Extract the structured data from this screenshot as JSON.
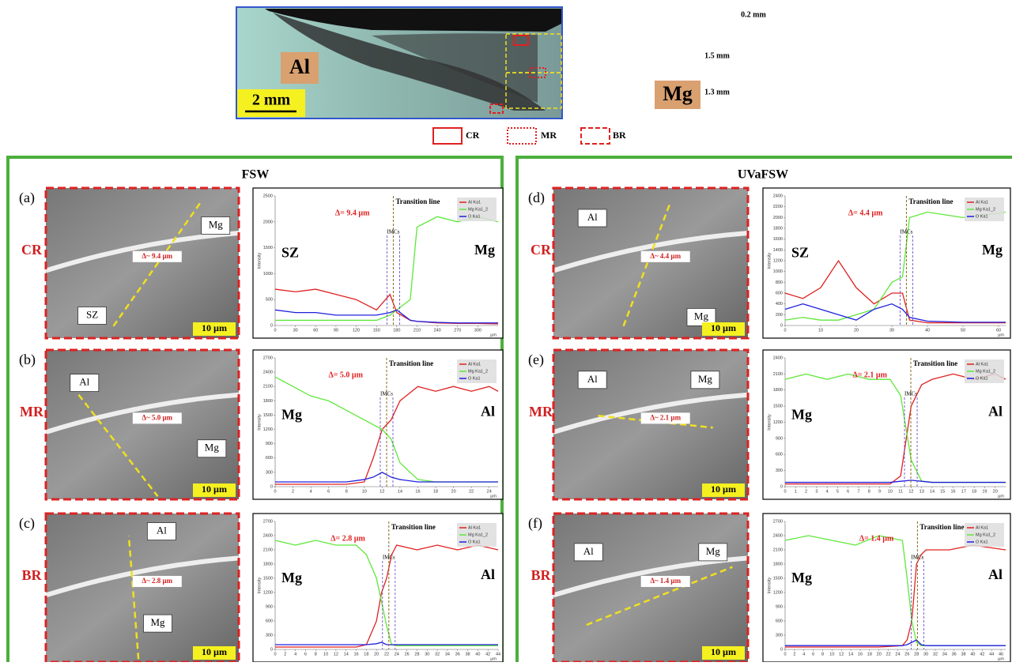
{
  "overview": {
    "labels": [
      "Al",
      "Mg"
    ],
    "scale_bar": "2 mm",
    "dims": [
      "0.2 mm",
      "1.5 mm",
      "1.3 mm"
    ],
    "legend": [
      "CR",
      "MR",
      "BR"
    ]
  },
  "panels": [
    {
      "title": "FSW"
    },
    {
      "title": "UVaFSW"
    }
  ],
  "micrographs": [
    {
      "letter": "(a)",
      "region": "CR",
      "labels": [
        "Mg",
        "SZ"
      ],
      "delta": "Δ~ 9.4 µm",
      "scale": "10 µm"
    },
    {
      "letter": "(b)",
      "region": "MR",
      "labels": [
        "Al",
        "Mg"
      ],
      "delta": "Δ~ 5.0 µm",
      "scale": "10 µm"
    },
    {
      "letter": "(c)",
      "region": "BR",
      "labels": [
        "Al",
        "Mg"
      ],
      "delta": "Δ~ 2.8 µm",
      "scale": "10 µm"
    },
    {
      "letter": "(d)",
      "region": "CR",
      "labels": [
        "Al",
        "Mg"
      ],
      "delta": "Δ~ 4.4 µm",
      "scale": "10 µm"
    },
    {
      "letter": "(e)",
      "region": "MR",
      "labels": [
        "Al",
        "Mg"
      ],
      "delta": "Δ~ 2.1 µm",
      "scale": "10 µm"
    },
    {
      "letter": "(f)",
      "region": "BR",
      "labels": [
        "Al",
        "Mg"
      ],
      "delta": "Δ~ 1.4 µm",
      "scale": "10 µm"
    }
  ],
  "chart_data": [
    {
      "type": "line",
      "xlabel": "µm",
      "ylabel": "Intensity",
      "delta": "Δ= 9.4 µm",
      "transition": "Transition line",
      "imcs": "IMCs",
      "left": "SZ",
      "right": "Mg",
      "x": [
        0,
        30,
        60,
        90,
        120,
        150,
        170,
        180,
        200,
        210,
        240,
        270,
        300,
        330
      ],
      "xlim": [
        0,
        330
      ],
      "xticks": [
        0,
        30,
        60,
        90,
        120,
        150,
        180,
        210,
        240,
        270,
        300
      ],
      "ylim": [
        0,
        2500
      ],
      "yticks": [
        0,
        500,
        1000,
        1500,
        2000,
        2500
      ],
      "series": [
        {
          "name": "Al Ka1",
          "color": "#e02020",
          "values": [
            700,
            650,
            700,
            600,
            500,
            300,
            600,
            250,
            100,
            80,
            50,
            40,
            40,
            30
          ]
        },
        {
          "name": "Mg Ka1_2",
          "color": "#5ee83a",
          "values": [
            100,
            100,
            100,
            100,
            100,
            100,
            200,
            300,
            500,
            1900,
            2100,
            2000,
            2100,
            2000
          ]
        },
        {
          "name": "O Ka1",
          "color": "#2020e0",
          "values": [
            300,
            250,
            250,
            200,
            200,
            200,
            250,
            300,
            100,
            80,
            60,
            50,
            50,
            50
          ]
        }
      ]
    },
    {
      "type": "line",
      "xlabel": "µm",
      "ylabel": "Intensity",
      "delta": "Δ= 5.0 µm",
      "transition": "Transition line",
      "imcs": "IMCs",
      "left": "Mg",
      "right": "Al",
      "x": [
        0,
        2,
        4,
        6,
        8,
        10,
        11,
        12,
        13,
        14,
        16,
        18,
        20,
        22,
        24,
        25
      ],
      "xlim": [
        0,
        25
      ],
      "xticks": [
        0,
        2,
        4,
        6,
        8,
        10,
        12,
        14,
        16,
        18,
        20,
        22,
        24
      ],
      "ylim": [
        0,
        2700
      ],
      "yticks": [
        0,
        300,
        600,
        900,
        1200,
        1500,
        1800,
        2100,
        2400,
        2700
      ],
      "series": [
        {
          "name": "Al Ka1",
          "color": "#e02020",
          "values": [
            50,
            50,
            50,
            50,
            50,
            100,
            600,
            1200,
            1400,
            1800,
            2100,
            2000,
            2100,
            2000,
            2100,
            2000
          ]
        },
        {
          "name": "Mg Ka1_2",
          "color": "#5ee83a",
          "values": [
            2300,
            2100,
            1900,
            1800,
            1600,
            1400,
            1300,
            1200,
            1000,
            500,
            150,
            100,
            100,
            100,
            100,
            100
          ]
        },
        {
          "name": "O Ka1",
          "color": "#2020e0",
          "values": [
            100,
            100,
            100,
            100,
            100,
            150,
            200,
            300,
            200,
            150,
            100,
            100,
            100,
            100,
            100,
            100
          ]
        }
      ]
    },
    {
      "type": "line",
      "xlabel": "µm",
      "ylabel": "Intensity",
      "delta": "Δ= 2.8 µm",
      "transition": "Transition line",
      "imcs": "IMCs",
      "left": "Mg",
      "right": "Al",
      "x": [
        0,
        4,
        8,
        12,
        16,
        18,
        20,
        21,
        22,
        23,
        24,
        28,
        32,
        36,
        40,
        44
      ],
      "xlim": [
        0,
        44
      ],
      "xticks": [
        0,
        2,
        4,
        6,
        8,
        10,
        12,
        14,
        16,
        18,
        20,
        22,
        24,
        26,
        28,
        30,
        32,
        34,
        36,
        38,
        40,
        42,
        44
      ],
      "ylim": [
        0,
        2700
      ],
      "yticks": [
        0,
        300,
        600,
        900,
        1200,
        1500,
        1800,
        2100,
        2400,
        2700
      ],
      "series": [
        {
          "name": "Al Ka1",
          "color": "#e02020",
          "values": [
            50,
            50,
            50,
            50,
            50,
            100,
            600,
            1200,
            1500,
            2000,
            2200,
            2100,
            2200,
            2100,
            2200,
            2100
          ]
        },
        {
          "name": "Mg Ka1_2",
          "color": "#5ee83a",
          "values": [
            2300,
            2200,
            2300,
            2200,
            2200,
            2000,
            1500,
            1000,
            500,
            100,
            80,
            80,
            80,
            80,
            80,
            80
          ]
        },
        {
          "name": "O Ka1",
          "color": "#2020e0",
          "values": [
            100,
            100,
            100,
            100,
            100,
            100,
            120,
            150,
            100,
            100,
            100,
            100,
            100,
            100,
            100,
            100
          ]
        }
      ]
    },
    {
      "type": "line",
      "xlabel": "µm",
      "ylabel": "Intensity",
      "delta": "Δ= 4.4 µm",
      "transition": "Transition line",
      "imcs": "IMCs",
      "left": "SZ",
      "right": "Mg",
      "x": [
        0,
        5,
        10,
        15,
        20,
        25,
        30,
        33,
        35,
        40,
        50,
        62
      ],
      "xlim": [
        0,
        62
      ],
      "xticks": [
        0,
        10,
        20,
        30,
        40,
        50,
        60
      ],
      "ylim": [
        0,
        2400
      ],
      "yticks": [
        0,
        200,
        400,
        600,
        800,
        1000,
        1200,
        1400,
        1600,
        1800,
        2000,
        2200,
        2400
      ],
      "series": [
        {
          "name": "Al Ka1",
          "color": "#e02020",
          "values": [
            600,
            500,
            700,
            1200,
            700,
            400,
            600,
            600,
            100,
            50,
            50,
            50
          ]
        },
        {
          "name": "Mg Ka1_2",
          "color": "#5ee83a",
          "values": [
            100,
            150,
            100,
            100,
            200,
            300,
            800,
            900,
            2000,
            2100,
            2000,
            2100
          ]
        },
        {
          "name": "O Ka1",
          "color": "#2020e0",
          "values": [
            300,
            400,
            300,
            200,
            100,
            300,
            400,
            300,
            150,
            80,
            60,
            60
          ]
        }
      ]
    },
    {
      "type": "line",
      "xlabel": "µm",
      "ylabel": "Intensity",
      "delta": "Δ= 2.1 µm",
      "transition": "Transition line",
      "imcs": "IMCs",
      "left": "Mg",
      "right": "Al",
      "x": [
        0,
        2,
        4,
        6,
        8,
        10,
        11,
        12,
        13,
        14,
        16,
        18,
        20,
        21
      ],
      "xlim": [
        0,
        21
      ],
      "xticks": [
        0,
        1,
        2,
        3,
        4,
        5,
        6,
        7,
        8,
        9,
        10,
        11,
        12,
        13,
        14,
        15,
        16,
        17,
        18,
        19,
        20
      ],
      "ylim": [
        0,
        2400
      ],
      "yticks": [
        0,
        300,
        600,
        900,
        1200,
        1500,
        1800,
        2100,
        2400
      ],
      "series": [
        {
          "name": "Al Ka1",
          "color": "#e02020",
          "values": [
            50,
            50,
            50,
            50,
            50,
            50,
            200,
            1500,
            1900,
            2000,
            2100,
            2000,
            2100,
            2000
          ]
        },
        {
          "name": "Mg Ka1_2",
          "color": "#5ee83a",
          "values": [
            2000,
            2100,
            2000,
            2100,
            2000,
            2000,
            1700,
            500,
            100,
            80,
            80,
            80,
            80,
            80
          ]
        },
        {
          "name": "O Ka1",
          "color": "#2020e0",
          "values": [
            80,
            80,
            80,
            80,
            80,
            80,
            100,
            120,
            100,
            80,
            80,
            80,
            80,
            80
          ]
        }
      ]
    },
    {
      "type": "line",
      "xlabel": "µm",
      "ylabel": "Intensity",
      "delta": "Δ= 1.4 µm",
      "transition": "Transition line",
      "imcs": "IMCs",
      "left": "Mg",
      "right": "Al",
      "x": [
        0,
        5,
        10,
        15,
        20,
        25,
        26,
        27,
        28,
        29,
        30,
        35,
        40,
        47
      ],
      "xlim": [
        0,
        47
      ],
      "xticks": [
        0,
        2,
        4,
        6,
        8,
        10,
        12,
        14,
        16,
        18,
        20,
        22,
        24,
        26,
        28,
        30,
        32,
        34,
        36,
        38,
        40,
        42,
        44,
        46
      ],
      "ylim": [
        0,
        2700
      ],
      "yticks": [
        0,
        300,
        600,
        900,
        1200,
        1500,
        1800,
        2100,
        2400,
        2700
      ],
      "series": [
        {
          "name": "Al Ka1",
          "color": "#e02020",
          "values": [
            50,
            50,
            50,
            50,
            50,
            80,
            200,
            600,
            1800,
            2000,
            2100,
            2100,
            2200,
            2100
          ]
        },
        {
          "name": "Mg Ka1_2",
          "color": "#5ee83a",
          "values": [
            2300,
            2400,
            2300,
            2200,
            2400,
            2300,
            1500,
            600,
            150,
            80,
            80,
            80,
            80,
            80
          ]
        },
        {
          "name": "O Ka1",
          "color": "#2020e0",
          "values": [
            80,
            80,
            80,
            80,
            80,
            80,
            100,
            150,
            200,
            100,
            80,
            80,
            80,
            80
          ]
        }
      ]
    }
  ]
}
